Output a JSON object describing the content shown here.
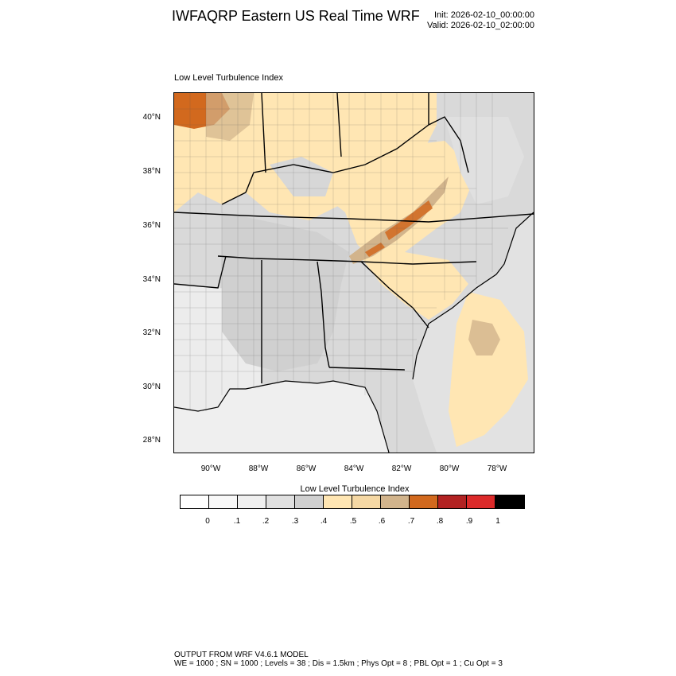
{
  "header": {
    "title": "IWFAQRP Eastern US Real Time WRF",
    "init": "Init: 2026-02-10_00:00:00",
    "valid": "Valid: 2026-02-10_02:00:00"
  },
  "field_title": "Low Level Turbulence Index",
  "map": {
    "lat_labels": [
      "40°N",
      "38°N",
      "36°N",
      "34°N",
      "32°N",
      "30°N",
      "28°N"
    ],
    "lon_labels": [
      "90°W",
      "88°W",
      "86°W",
      "84°W",
      "82°W",
      "80°W",
      "78°W"
    ]
  },
  "colorbar": {
    "title": "Low Level Turbulence Index",
    "colors": [
      "#ffffff",
      "#f8f8f8",
      "#f0f0f0",
      "#e0e0e0",
      "#d0d0d0",
      "#ffe6b3",
      "#f5d8a4",
      "#d2b48c",
      "#d2691e",
      "#b22222",
      "#dc2a2a",
      "#000000"
    ],
    "labels": [
      "0",
      ".1",
      ".2",
      ".3",
      ".4",
      ".5",
      ".6",
      ".7",
      ".8",
      ".9",
      "1"
    ]
  },
  "footer": {
    "line1": "OUTPUT FROM WRF V4.6.1 MODEL",
    "line2": "WE = 1000 ; SN = 1000 ; Levels = 38 ; Dis = 1.5km ; Phys Opt = 8 ; PBL Opt = 1 ; Cu Opt = 3"
  }
}
